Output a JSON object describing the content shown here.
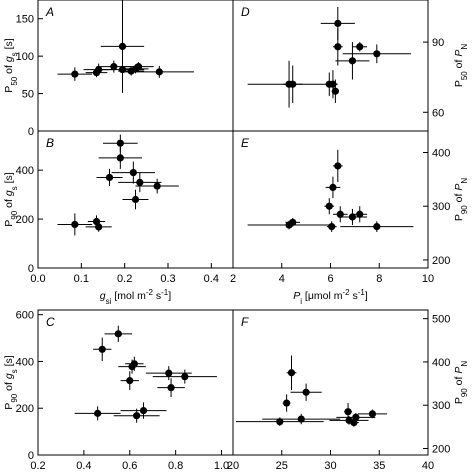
{
  "chart_data": [
    {
      "panel": "A",
      "type": "scatter",
      "xlim": [
        0,
        0.45
      ],
      "ylim": [
        0,
        175
      ],
      "yticks": [
        "0",
        "50",
        "100",
        "150"
      ],
      "ytick_values": [
        0,
        50,
        100,
        150
      ],
      "ylabel_main": "P",
      "ylabel_sub": "50",
      "ylabel_rest": " of g",
      "ylabel_gsub": "s",
      "ylabel_unit": " [s]",
      "points": [
        {
          "x": 0.085,
          "y": 76,
          "xerr": 0.04,
          "yerr": 9
        },
        {
          "x": 0.135,
          "y": 78,
          "xerr": 0.025,
          "yerr": 6
        },
        {
          "x": 0.14,
          "y": 82,
          "xerr": 0.035,
          "yerr": 8
        },
        {
          "x": 0.175,
          "y": 86,
          "xerr": 0.04,
          "yerr": 8
        },
        {
          "x": 0.195,
          "y": 113,
          "xerr": 0.05,
          "yerr": 62
        },
        {
          "x": 0.195,
          "y": 82,
          "xerr": 0.05,
          "yerr": 20
        },
        {
          "x": 0.215,
          "y": 80,
          "xerr": 0.03,
          "yerr": 6
        },
        {
          "x": 0.225,
          "y": 83,
          "xerr": 0.03,
          "yerr": 6
        },
        {
          "x": 0.232,
          "y": 86,
          "xerr": 0.035,
          "yerr": 6
        },
        {
          "x": 0.28,
          "y": 79,
          "xerr": 0.08,
          "yerr": 8
        }
      ]
    },
    {
      "panel": "B",
      "type": "scatter",
      "xlim": [
        0,
        0.45
      ],
      "ylim": [
        0,
        560
      ],
      "yticks": [
        "0",
        "200",
        "400"
      ],
      "ytick_values": [
        0,
        200,
        400
      ],
      "xticks": [
        "0.0",
        "0.1",
        "0.2",
        "0.3",
        "0.4"
      ],
      "xtick_values": [
        0,
        0.1,
        0.2,
        0.3,
        0.4
      ],
      "xlabel_main": "g",
      "xlabel_sub": "si",
      "xlabel_rest": " [mol m",
      "xlabel_sup1": "-2",
      "xlabel_mid": " s",
      "xlabel_sup2": "-1",
      "xlabel_end": "]",
      "ylabel_main": "P",
      "ylabel_sub": "90",
      "ylabel_rest": " of g",
      "ylabel_gsub": "s",
      "ylabel_unit": " [s]",
      "points": [
        {
          "x": 0.085,
          "y": 178,
          "xerr": 0.04,
          "yerr": 45
        },
        {
          "x": 0.135,
          "y": 190,
          "xerr": 0.02,
          "yerr": 25
        },
        {
          "x": 0.14,
          "y": 168,
          "xerr": 0.03,
          "yerr": 20
        },
        {
          "x": 0.165,
          "y": 370,
          "xerr": 0.03,
          "yerr": 35
        },
        {
          "x": 0.19,
          "y": 510,
          "xerr": 0.04,
          "yerr": 35
        },
        {
          "x": 0.19,
          "y": 450,
          "xerr": 0.05,
          "yerr": 45
        },
        {
          "x": 0.22,
          "y": 390,
          "xerr": 0.05,
          "yerr": 45
        },
        {
          "x": 0.225,
          "y": 280,
          "xerr": 0.03,
          "yerr": 40
        },
        {
          "x": 0.235,
          "y": 350,
          "xerr": 0.05,
          "yerr": 40
        },
        {
          "x": 0.275,
          "y": 335,
          "xerr": 0.05,
          "yerr": 30
        }
      ]
    },
    {
      "panel": "C",
      "type": "scatter",
      "xlim": [
        0.2,
        1.05
      ],
      "ylim": [
        0,
        620
      ],
      "yticks": [
        "0",
        "200",
        "400",
        "600"
      ],
      "ytick_values": [
        0,
        200,
        400,
        600
      ],
      "xticks": [
        "0.2",
        "0.4",
        "0.6",
        "0.8",
        "1.0"
      ],
      "xtick_values": [
        0.2,
        0.4,
        0.6,
        0.8,
        1.0
      ],
      "ylabel_main": "P",
      "ylabel_sub": "90",
      "ylabel_rest": " of g",
      "ylabel_gsub": "s",
      "ylabel_unit": " [s]",
      "points": [
        {
          "x": 0.46,
          "y": 178,
          "xerr": 0.1,
          "yerr": 30
        },
        {
          "x": 0.48,
          "y": 452,
          "xerr": 0.04,
          "yerr": 50
        },
        {
          "x": 0.55,
          "y": 518,
          "xerr": 0.06,
          "yerr": 35
        },
        {
          "x": 0.6,
          "y": 318,
          "xerr": 0.04,
          "yerr": 40
        },
        {
          "x": 0.61,
          "y": 378,
          "xerr": 0.06,
          "yerr": 30
        },
        {
          "x": 0.62,
          "y": 390,
          "xerr": 0.04,
          "yerr": 30
        },
        {
          "x": 0.63,
          "y": 168,
          "xerr": 0.1,
          "yerr": 30
        },
        {
          "x": 0.66,
          "y": 190,
          "xerr": 0.1,
          "yerr": 35
        },
        {
          "x": 0.77,
          "y": 350,
          "xerr": 0.1,
          "yerr": 30
        },
        {
          "x": 0.78,
          "y": 288,
          "xerr": 0.06,
          "yerr": 40
        },
        {
          "x": 0.84,
          "y": 335,
          "xerr": 0.14,
          "yerr": 30
        }
      ]
    },
    {
      "panel": "D",
      "type": "scatter",
      "xlim": [
        2,
        10
      ],
      "ylim": [
        52,
        108
      ],
      "yticks": [
        "60",
        "90"
      ],
      "ytick_values": [
        60,
        90
      ],
      "ylabel_main": "P",
      "ylabel_sub": "50",
      "ylabel_rest": " of P",
      "ylabel_gsub": "N",
      "ylabel_unit": "",
      "points": [
        {
          "x": 4.3,
          "y": 72,
          "xerr": 1.7,
          "yerr": 10
        },
        {
          "x": 4.45,
          "y": 72,
          "xerr": 0.4,
          "yerr": 8
        },
        {
          "x": 5.95,
          "y": 72,
          "xerr": 0.15,
          "yerr": 5
        },
        {
          "x": 6.1,
          "y": 72,
          "xerr": 0.2,
          "yerr": 6
        },
        {
          "x": 6.2,
          "y": 69,
          "xerr": 0.15,
          "yerr": 5
        },
        {
          "x": 6.3,
          "y": 98,
          "xerr": 0.7,
          "yerr": 7
        },
        {
          "x": 6.3,
          "y": 88,
          "xerr": 0.2,
          "yerr": 8
        },
        {
          "x": 6.9,
          "y": 82,
          "xerr": 0.7,
          "yerr": 8
        },
        {
          "x": 7.2,
          "y": 88,
          "xerr": 0.3,
          "yerr": 2
        },
        {
          "x": 7.9,
          "y": 85,
          "xerr": 1.4,
          "yerr": 4
        }
      ]
    },
    {
      "panel": "E",
      "type": "scatter",
      "xlim": [
        2,
        10
      ],
      "ylim": [
        185,
        440
      ],
      "yticks": [
        "200",
        "300",
        "400"
      ],
      "ytick_values": [
        200,
        300,
        400
      ],
      "xticks": [
        "2",
        "4",
        "6",
        "8",
        "10"
      ],
      "xtick_values": [
        2,
        4,
        6,
        8,
        10
      ],
      "xlabel_main": "P",
      "xlabel_sub": "i",
      "xlabel_rest": " [μmol m",
      "xlabel_sup1": "-2",
      "xlabel_mid": " s",
      "xlabel_sup2": "-1",
      "xlabel_end": "]",
      "ylabel_main": "P",
      "ylabel_sub": "90",
      "ylabel_rest": " of P",
      "ylabel_gsub": "N",
      "ylabel_unit": "",
      "points": [
        {
          "x": 4.3,
          "y": 265,
          "xerr": 1.7,
          "yerr": 8
        },
        {
          "x": 4.45,
          "y": 270,
          "xerr": 0.3,
          "yerr": 8
        },
        {
          "x": 5.95,
          "y": 300,
          "xerr": 0.2,
          "yerr": 15
        },
        {
          "x": 6.05,
          "y": 262,
          "xerr": 0.2,
          "yerr": 10
        },
        {
          "x": 6.1,
          "y": 335,
          "xerr": 0.3,
          "yerr": 20
        },
        {
          "x": 6.3,
          "y": 375,
          "xerr": 0.2,
          "yerr": 30
        },
        {
          "x": 6.4,
          "y": 285,
          "xerr": 0.3,
          "yerr": 15
        },
        {
          "x": 6.9,
          "y": 280,
          "xerr": 0.6,
          "yerr": 15
        },
        {
          "x": 7.2,
          "y": 285,
          "xerr": 0.3,
          "yerr": 15
        },
        {
          "x": 7.9,
          "y": 262,
          "xerr": 1.5,
          "yerr": 10
        }
      ]
    },
    {
      "panel": "F",
      "type": "scatter",
      "xlim": [
        20,
        40
      ],
      "ylim": [
        185,
        520
      ],
      "yticks": [
        "200",
        "300",
        "400",
        "500"
      ],
      "ytick_values": [
        200,
        300,
        400,
        500
      ],
      "xticks": [
        "20",
        "25",
        "30",
        "35",
        "40"
      ],
      "xtick_values": [
        20,
        25,
        30,
        35,
        40
      ],
      "ylabel_main": "P",
      "ylabel_sub": "90",
      "ylabel_rest": " of P",
      "ylabel_gsub": "N",
      "ylabel_unit": "",
      "points": [
        {
          "x": 24.8,
          "y": 262,
          "xerr": 4.5,
          "yerr": 10
        },
        {
          "x": 25.5,
          "y": 305,
          "xerr": 0.4,
          "yerr": 20
        },
        {
          "x": 26.0,
          "y": 375,
          "xerr": 0.5,
          "yerr": 40
        },
        {
          "x": 27.0,
          "y": 268,
          "xerr": 4.0,
          "yerr": 12
        },
        {
          "x": 27.5,
          "y": 330,
          "xerr": 1.6,
          "yerr": 20
        },
        {
          "x": 31.8,
          "y": 285,
          "xerr": 0.4,
          "yerr": 20
        },
        {
          "x": 31.9,
          "y": 265,
          "xerr": 2.0,
          "yerr": 10
        },
        {
          "x": 32.4,
          "y": 260,
          "xerr": 0.5,
          "yerr": 10
        },
        {
          "x": 32.6,
          "y": 272,
          "xerr": 2.0,
          "yerr": 10
        },
        {
          "x": 34.3,
          "y": 280,
          "xerr": 1.5,
          "yerr": 10
        }
      ]
    }
  ]
}
